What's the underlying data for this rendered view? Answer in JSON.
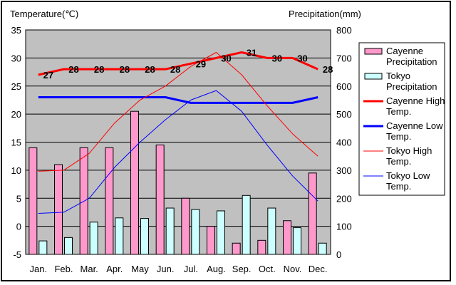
{
  "chart_data": {
    "type": "bar",
    "categories": [
      "Jan.",
      "Feb.",
      "Mar.",
      "Apr.",
      "May",
      "Jun.",
      "Jul.",
      "Aug.",
      "Sep.",
      "Oct.",
      "Nov.",
      "Dec."
    ],
    "left_axis_title": "Temperature(℃)",
    "right_axis_title": "Precipitation(mm)",
    "left_ylim": [
      -5,
      35
    ],
    "left_ticks": [
      35,
      30,
      25,
      20,
      15,
      10,
      5,
      0,
      -5
    ],
    "right_ylim": [
      0,
      800
    ],
    "right_ticks": [
      800,
      700,
      600,
      500,
      400,
      300,
      200,
      100,
      0
    ],
    "grid": true,
    "legend_position": "right",
    "series": [
      {
        "name": "Cayenne Precipitation",
        "kind": "bar",
        "axis": "right",
        "color": "#ff99cc",
        "values": [
          380,
          320,
          380,
          380,
          510,
          390,
          200,
          100,
          40,
          50,
          120,
          290
        ]
      },
      {
        "name": "Tokyo Precipitation",
        "kind": "bar",
        "axis": "right",
        "color": "#ccffff",
        "values": [
          48,
          60,
          115,
          130,
          128,
          165,
          160,
          155,
          210,
          165,
          95,
          40
        ]
      },
      {
        "name": "Cayenne High Temp.",
        "kind": "line",
        "axis": "left",
        "color": "#ff0000",
        "width": 3,
        "values": [
          27,
          28,
          28,
          28,
          28,
          28,
          29,
          30,
          31,
          30,
          30,
          28
        ]
      },
      {
        "name": "Cayenne Low Temp.",
        "kind": "line",
        "axis": "left",
        "color": "#0000ff",
        "width": 3,
        "values": [
          23,
          23,
          23,
          23,
          23,
          23,
          22,
          22,
          22,
          22,
          22,
          23
        ]
      },
      {
        "name": "Tokyo High Temp.",
        "kind": "line",
        "axis": "left",
        "color": "#ff0000",
        "width": 1,
        "values": [
          9.8,
          10,
          13,
          18.4,
          22.5,
          25,
          28.5,
          31,
          27,
          21.5,
          16.5,
          12.5
        ]
      },
      {
        "name": "Tokyo Low Temp.",
        "kind": "line",
        "axis": "left",
        "color": "#0000ff",
        "width": 1,
        "values": [
          2.3,
          2.5,
          5,
          10.5,
          15,
          19,
          22.5,
          24.2,
          20.5,
          14.5,
          9,
          4.5
        ]
      }
    ],
    "data_labels": {
      "series": "Cayenne High Temp.",
      "labels": [
        "27",
        "28",
        "28",
        "28",
        "28",
        "28",
        "29",
        "30",
        "31",
        "30",
        "30",
        "28"
      ]
    }
  }
}
